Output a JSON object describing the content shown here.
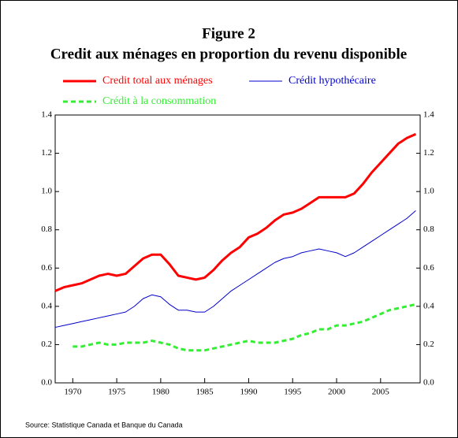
{
  "chart_data": {
    "type": "line",
    "title": "Figure 2",
    "subtitle": "Credit aux ménages en proportion du revenu disponible",
    "source": "Source: Statistique Canada et Banque du Canada",
    "x": [
      1968,
      1969,
      1970,
      1971,
      1972,
      1973,
      1974,
      1975,
      1976,
      1977,
      1978,
      1979,
      1980,
      1981,
      1982,
      1983,
      1984,
      1985,
      1986,
      1987,
      1988,
      1989,
      1990,
      1991,
      1992,
      1993,
      1994,
      1995,
      1996,
      1997,
      1998,
      1999,
      2000,
      2001,
      2002,
      2003,
      2004,
      2005,
      2006,
      2007,
      2008,
      2009
    ],
    "series": [
      {
        "name": "Credit total aux ménages",
        "color": "#ff0000",
        "width": 3,
        "dash": "solid",
        "values": [
          0.48,
          0.5,
          0.51,
          0.52,
          0.54,
          0.56,
          0.57,
          0.56,
          0.57,
          0.61,
          0.65,
          0.67,
          0.67,
          0.62,
          0.56,
          0.55,
          0.54,
          0.55,
          0.59,
          0.64,
          0.68,
          0.71,
          0.76,
          0.78,
          0.81,
          0.85,
          0.88,
          0.89,
          0.91,
          0.94,
          0.97,
          0.97,
          0.97,
          0.97,
          0.99,
          1.04,
          1.1,
          1.15,
          1.2,
          1.25,
          1.28,
          1.3
        ]
      },
      {
        "name": "Crédit hypothécaire",
        "color": "#0000cc",
        "width": 1,
        "dash": "solid",
        "values": [
          0.29,
          0.3,
          0.31,
          0.32,
          0.33,
          0.34,
          0.35,
          0.36,
          0.37,
          0.4,
          0.44,
          0.46,
          0.45,
          0.41,
          0.38,
          0.38,
          0.37,
          0.37,
          0.4,
          0.44,
          0.48,
          0.51,
          0.54,
          0.57,
          0.6,
          0.63,
          0.65,
          0.66,
          0.68,
          0.69,
          0.7,
          0.69,
          0.68,
          0.66,
          0.68,
          0.71,
          0.74,
          0.77,
          0.8,
          0.83,
          0.86,
          0.9
        ]
      },
      {
        "name": "Crédit à la consommation",
        "color": "#33ee33",
        "width": 3,
        "dash": "dashed",
        "values": [
          null,
          null,
          0.19,
          0.19,
          0.2,
          0.21,
          0.2,
          0.2,
          0.21,
          0.21,
          0.21,
          0.22,
          0.21,
          0.2,
          0.18,
          0.17,
          0.17,
          0.17,
          0.18,
          0.19,
          0.2,
          0.21,
          0.22,
          0.21,
          0.21,
          0.21,
          0.22,
          0.23,
          0.25,
          0.26,
          0.28,
          0.28,
          0.3,
          0.3,
          0.31,
          0.32,
          0.34,
          0.36,
          0.38,
          0.39,
          0.4,
          0.41
        ]
      }
    ],
    "xlim": [
      1968,
      2009.5
    ],
    "xticks": [
      1970,
      1975,
      1980,
      1985,
      1990,
      1995,
      2000,
      2005
    ],
    "ylim": [
      0,
      1.4
    ],
    "yticks": [
      {
        "value": 0,
        "label": "0.0"
      },
      0.2,
      0.4,
      0.6,
      0.8,
      {
        "value": 1,
        "label": "1.0"
      },
      1.2,
      1.4
    ]
  }
}
